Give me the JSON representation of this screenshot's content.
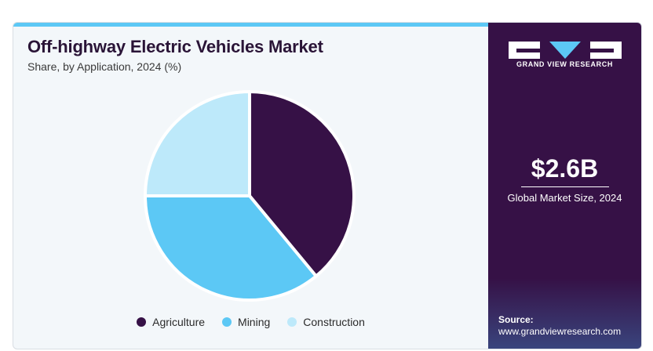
{
  "chart_data": {
    "type": "pie",
    "title": "Off-highway Electric Vehicles Market",
    "subtitle": "Share, by Application, 2024 (%)",
    "slices": [
      {
        "name": "Agriculture",
        "value": 39,
        "color": "#361146"
      },
      {
        "name": "Mining",
        "value": 36,
        "color": "#5cc8f5"
      },
      {
        "name": "Construction",
        "value": 25,
        "color": "#bde9fa"
      }
    ],
    "legend_position": "bottom"
  },
  "kpi": {
    "value": "$2.6B",
    "label": "Global Market Size, 2024"
  },
  "brand": {
    "name": "GRAND VIEW RESEARCH"
  },
  "source": {
    "label": "Source:",
    "url": "www.grandviewresearch.com"
  },
  "colors": {
    "panel_bg": "#361146",
    "accent": "#5cc8f5"
  }
}
